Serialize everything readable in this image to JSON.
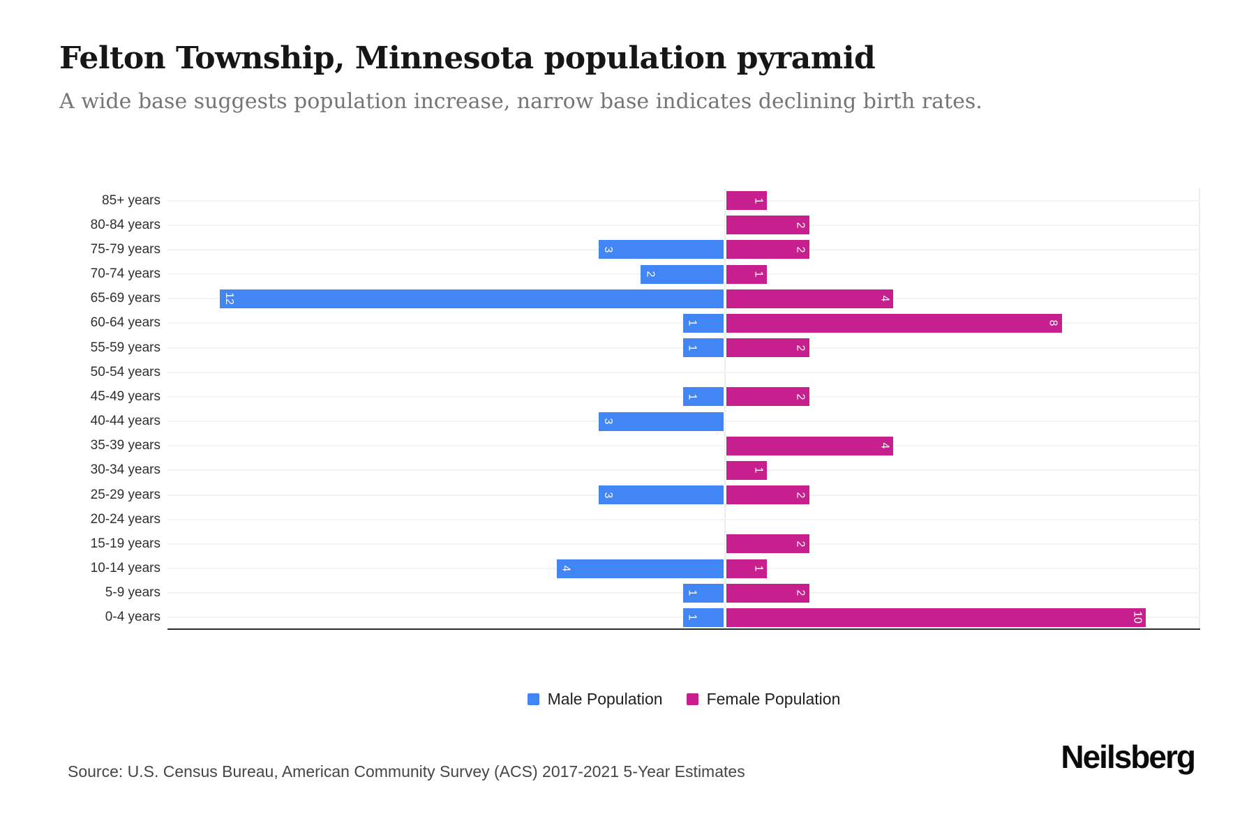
{
  "header": {
    "title": "Felton Township, Minnesota population pyramid",
    "subtitle": "A wide base suggests population increase, narrow base indicates declining birth rates."
  },
  "chart_data": {
    "type": "bar",
    "variant": "population-pyramid",
    "orientation": "horizontal-diverging",
    "title": "Felton Township, Minnesota population pyramid",
    "categories": [
      "85+ years",
      "80-84 years",
      "75-79 years",
      "70-74 years",
      "65-69 years",
      "60-64 years",
      "55-59 years",
      "50-54 years",
      "45-49 years",
      "40-44 years",
      "35-39 years",
      "30-34 years",
      "25-29 years",
      "20-24 years",
      "15-19 years",
      "10-14 years",
      "5-9 years",
      "0-4 years"
    ],
    "series": [
      {
        "name": "Male Population",
        "side": "left",
        "color": "#4285F4",
        "values": [
          0,
          0,
          3,
          2,
          12,
          1,
          1,
          0,
          1,
          3,
          0,
          0,
          3,
          0,
          0,
          4,
          1,
          1
        ]
      },
      {
        "name": "Female Population",
        "side": "right",
        "color": "#C7208E",
        "values": [
          1,
          2,
          2,
          1,
          4,
          8,
          2,
          0,
          2,
          0,
          4,
          1,
          2,
          0,
          2,
          1,
          2,
          10
        ]
      }
    ],
    "value_axis": {
      "min": 0,
      "max": 12,
      "tick_labels_visible": false
    },
    "bar_value_labels": "rotated-90-inside-end",
    "grid": "light-horizontal-category-lines",
    "legend_position": "bottom-center"
  },
  "legend": {
    "items": [
      {
        "label": "Male Population",
        "color": "#4285F4"
      },
      {
        "label": "Female Population",
        "color": "#C7208E"
      }
    ]
  },
  "footer": {
    "source": "Source: U.S. Census Bureau, American Community Survey (ACS) 2017-2021 5-Year Estimates",
    "logo": "Neilsberg"
  }
}
